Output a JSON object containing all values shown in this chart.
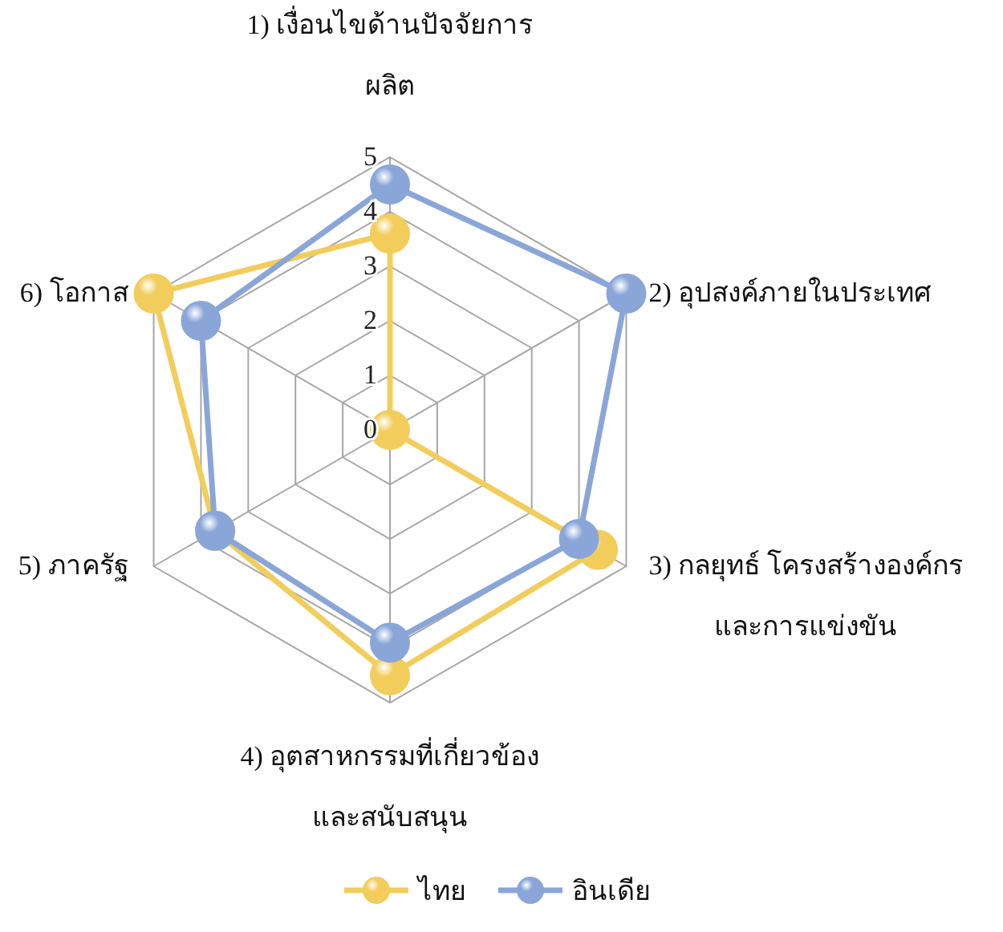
{
  "chart_data": {
    "type": "radar",
    "categories": [
      "1) เงื่อนไขด้านปัจจัยการ\nผลิต",
      "2) อุปสงค์ภายในประเทศ",
      "3) กลยุทธ์ โครงสร้างองค์กร\nและการแข่งขัน",
      "4) อุตสาหกรรมที่เกี่ยวข้อง\nและสนับสนุน",
      "5) ภาครัฐ",
      "6) โอกาส"
    ],
    "series": [
      {
        "name": "ไทย",
        "color": "#f2cd5c",
        "values": [
          3.6,
          0,
          4.4,
          4.5,
          3.7,
          5.0
        ]
      },
      {
        "name": "อินเดีย",
        "color": "#8aa6d8",
        "values": [
          4.5,
          5.0,
          4.0,
          3.9,
          3.7,
          4.0
        ]
      }
    ],
    "ylim": [
      0,
      5
    ],
    "yticks": [
      0,
      1,
      2,
      3,
      4,
      5
    ],
    "grid": true,
    "legend": "bottom",
    "marker": "circle",
    "line_style": "solid"
  }
}
